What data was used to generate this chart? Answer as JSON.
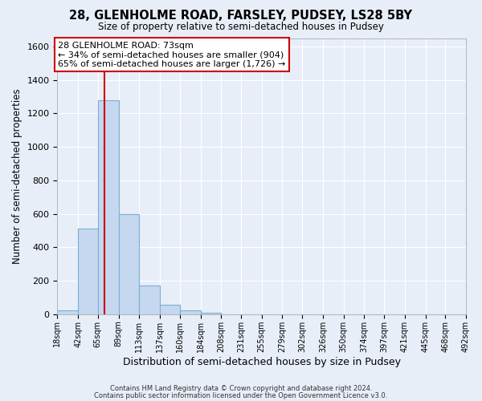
{
  "title_line1": "28, GLENHOLME ROAD, FARSLEY, PUDSEY, LS28 5BY",
  "title_line2": "Size of property relative to semi-detached houses in Pudsey",
  "xlabel": "Distribution of semi-detached houses by size in Pudsey",
  "ylabel": "Number of semi-detached properties",
  "bin_edges": [
    18,
    42,
    65,
    89,
    113,
    137,
    160,
    184,
    208,
    231,
    255,
    279,
    302,
    326,
    350,
    374,
    397,
    421,
    445,
    468,
    492
  ],
  "bin_heights": [
    25,
    510,
    1280,
    600,
    170,
    55,
    25,
    10,
    0,
    0,
    0,
    0,
    0,
    0,
    0,
    0,
    0,
    0,
    0,
    0
  ],
  "bar_color": "#c5d8f0",
  "bar_edge_color": "#7aafd4",
  "vline_color": "#cc0000",
  "vline_x": 73,
  "annotation_title": "28 GLENHOLME ROAD: 73sqm",
  "annotation_line2": "← 34% of semi-detached houses are smaller (904)",
  "annotation_line3": "65% of semi-detached houses are larger (1,726) →",
  "annotation_box_facecolor": "#ffffff",
  "annotation_box_edgecolor": "#cc0000",
  "ylim": [
    0,
    1650
  ],
  "yticks": [
    0,
    200,
    400,
    600,
    800,
    1000,
    1200,
    1400,
    1600
  ],
  "tick_labels": [
    "18sqm",
    "42sqm",
    "65sqm",
    "89sqm",
    "113sqm",
    "137sqm",
    "160sqm",
    "184sqm",
    "208sqm",
    "231sqm",
    "255sqm",
    "279sqm",
    "302sqm",
    "326sqm",
    "350sqm",
    "374sqm",
    "397sqm",
    "421sqm",
    "445sqm",
    "468sqm",
    "492sqm"
  ],
  "footnote1": "Contains HM Land Registry data © Crown copyright and database right 2024.",
  "footnote2": "Contains public sector information licensed under the Open Government Licence v3.0.",
  "background_color": "#e8eef8",
  "grid_color": "#ffffff",
  "figsize": [
    6.0,
    5.0
  ],
  "dpi": 100
}
